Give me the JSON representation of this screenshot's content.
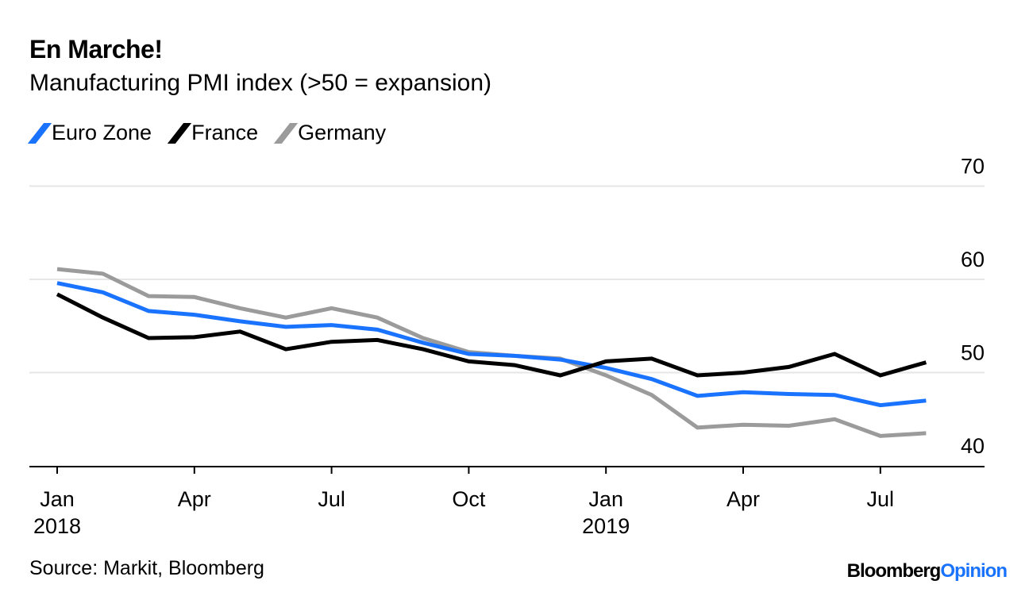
{
  "chart_data": {
    "type": "line",
    "title": "En Marche!",
    "subtitle": "Manufacturing PMI index (>50 = expansion)",
    "xlabel": "",
    "ylabel": "",
    "ylim": [
      40,
      70
    ],
    "yticks": [
      "70",
      "60",
      "50",
      "40"
    ],
    "ytick_values": [
      70,
      60,
      50,
      40
    ],
    "grid": true,
    "legend_position": "top-left",
    "x": [
      "2018-01",
      "2018-02",
      "2018-03",
      "2018-04",
      "2018-05",
      "2018-06",
      "2018-07",
      "2018-08",
      "2018-09",
      "2018-10",
      "2018-11",
      "2018-12",
      "2019-01",
      "2019-02",
      "2019-03",
      "2019-04",
      "2019-05",
      "2019-06",
      "2019-07",
      "2019-08"
    ],
    "xticks": [
      {
        "index": 0,
        "label": "Jan",
        "year": "2018"
      },
      {
        "index": 3,
        "label": "Apr",
        "year": ""
      },
      {
        "index": 6,
        "label": "Jul",
        "year": ""
      },
      {
        "index": 9,
        "label": "Oct",
        "year": ""
      },
      {
        "index": 12,
        "label": "Jan",
        "year": "2019"
      },
      {
        "index": 15,
        "label": "Apr",
        "year": ""
      },
      {
        "index": 18,
        "label": "Jul",
        "year": ""
      }
    ],
    "series": [
      {
        "name": "Euro Zone",
        "color": "#1a73ff",
        "values": [
          59.6,
          58.6,
          56.6,
          56.2,
          55.5,
          54.9,
          55.1,
          54.6,
          53.2,
          52.0,
          51.8,
          51.4,
          50.5,
          49.3,
          47.5,
          47.9,
          47.7,
          47.6,
          46.5,
          47.0
        ]
      },
      {
        "name": "France",
        "color": "#000000",
        "values": [
          58.4,
          55.9,
          53.7,
          53.8,
          54.4,
          52.5,
          53.3,
          53.5,
          52.5,
          51.2,
          50.8,
          49.7,
          51.2,
          51.5,
          49.7,
          50.0,
          50.6,
          52.0,
          49.7,
          51.1
        ]
      },
      {
        "name": "Germany",
        "color": "#9b9b9b",
        "values": [
          61.1,
          60.6,
          58.2,
          58.1,
          56.9,
          55.9,
          56.9,
          55.9,
          53.7,
          52.2,
          51.8,
          51.5,
          49.7,
          47.6,
          44.1,
          44.4,
          44.3,
          45.0,
          43.2,
          43.5
        ]
      }
    ]
  },
  "footer": {
    "source": "Source: Markit, Bloomberg",
    "logo_text": "BloombergOpinion",
    "logo_part1": "Bloomberg",
    "logo_part2": "Opinion"
  }
}
